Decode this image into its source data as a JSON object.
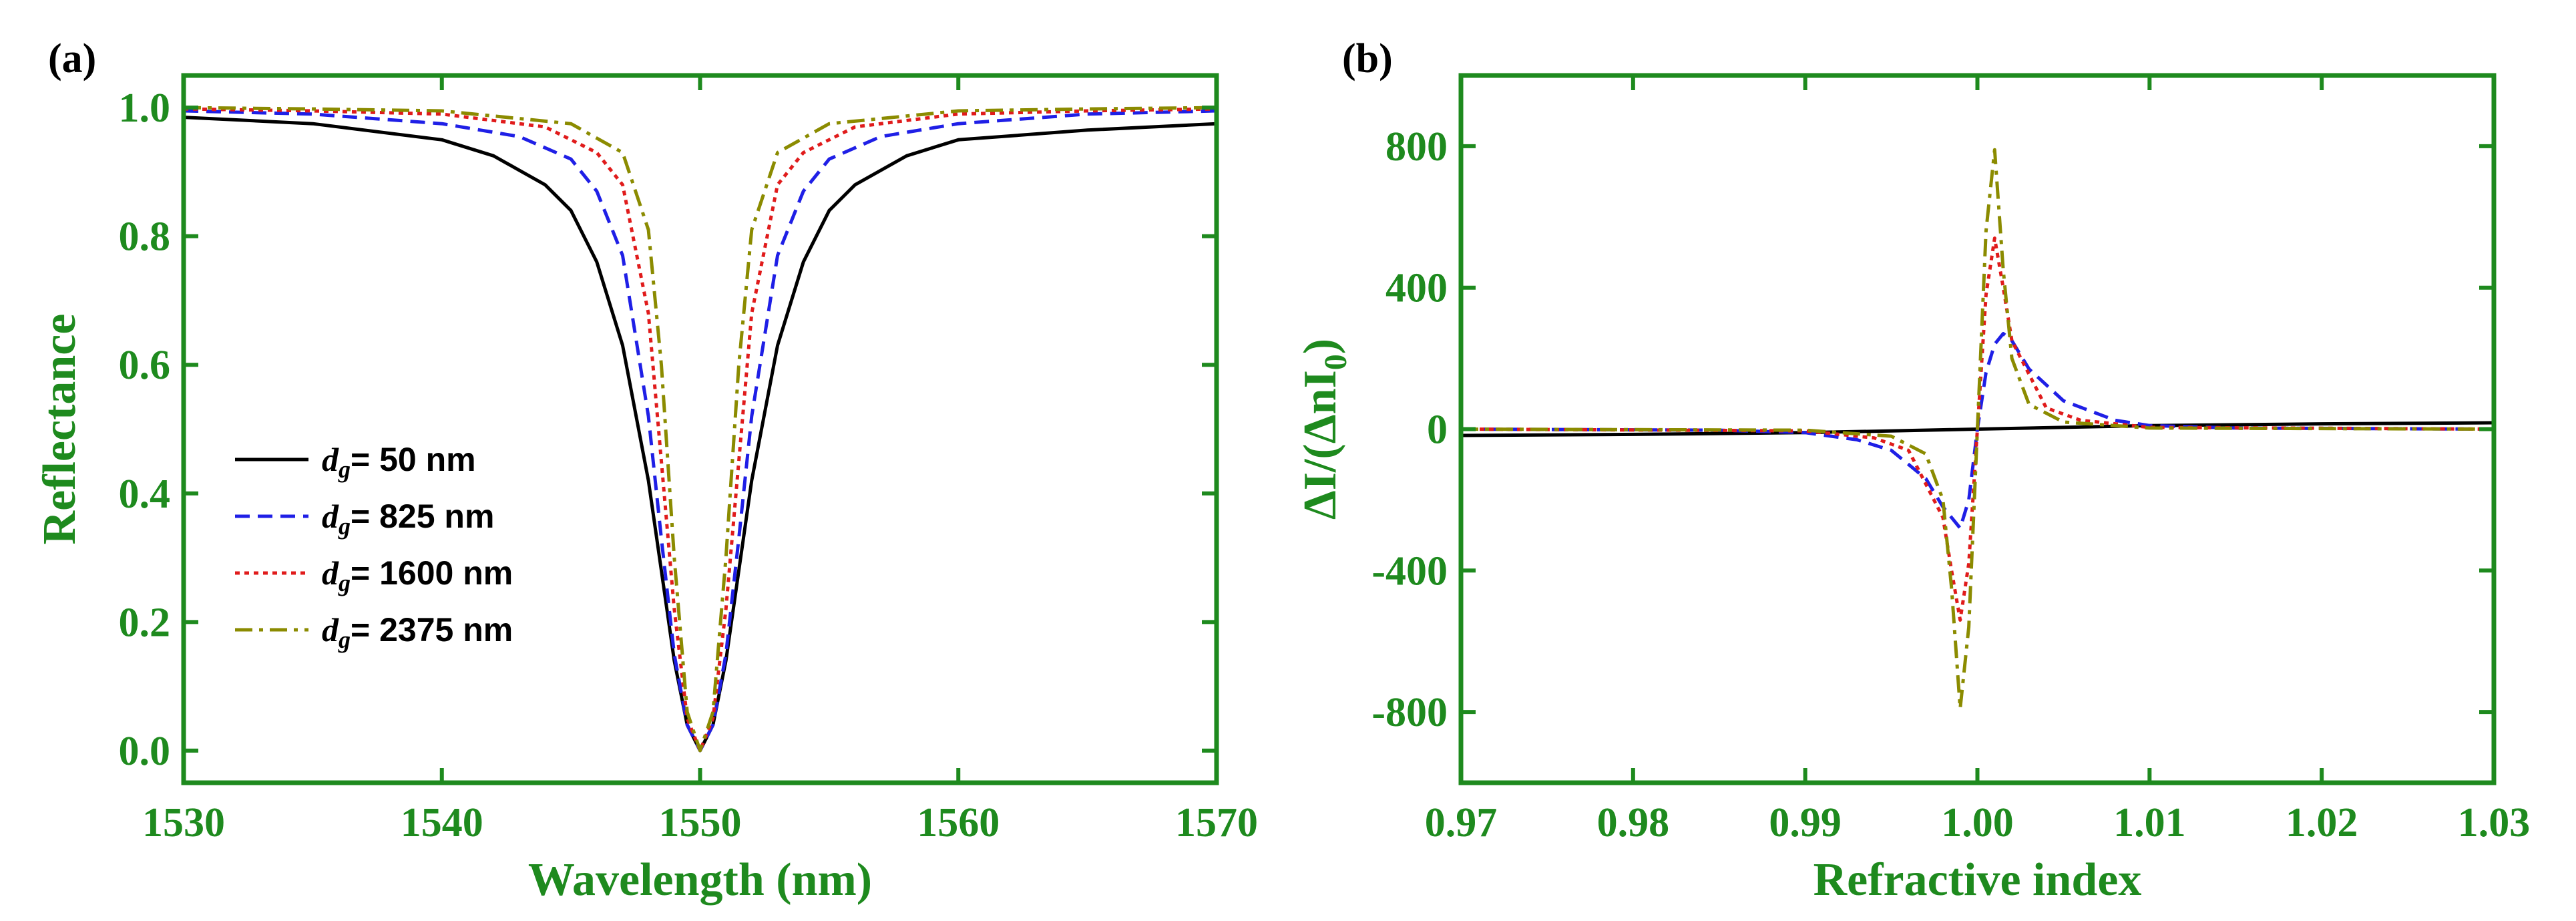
{
  "colors": {
    "axis": "#1e8a1e",
    "series_50": "#000000",
    "series_825": "#1f1fe6",
    "series_1600": "#e01b1b",
    "series_2375": "#8b8b00"
  },
  "chart_data": [
    {
      "panel": "(a)",
      "type": "line",
      "title": "",
      "xlabel": "Wavelength (nm)",
      "ylabel": "Reflectance",
      "xlim": [
        1530,
        1570
      ],
      "ylim": [
        -0.05,
        1.05
      ],
      "xticks": [
        "1530",
        "1540",
        "1550",
        "1560",
        "1570"
      ],
      "yticks": [
        "0.0",
        "0.2",
        "0.4",
        "0.6",
        "0.8",
        "1.0"
      ],
      "legend_position": "center-left",
      "legend": [
        {
          "prefix": "d",
          "sub": "g",
          "text": "= 50 nm",
          "style": "solid"
        },
        {
          "prefix": "d",
          "sub": "g",
          "text": "= 825 nm",
          "style": "dashed"
        },
        {
          "prefix": "d",
          "sub": "g",
          "text": "= 1600 nm",
          "style": "dotted"
        },
        {
          "prefix": "d",
          "sub": "g",
          "text": "= 2375 nm",
          "style": "dashdot"
        }
      ],
      "series": [
        {
          "name": "dg = 50 nm",
          "color": "#000000",
          "style": "solid",
          "x": [
            1530,
            1535,
            1540,
            1542,
            1544,
            1545,
            1546,
            1547,
            1548,
            1548.5,
            1549,
            1549.5,
            1550,
            1550.5,
            1551,
            1551.5,
            1552,
            1553,
            1554,
            1555,
            1556,
            1558,
            1560,
            1565,
            1570
          ],
          "y": [
            0.985,
            0.975,
            0.95,
            0.925,
            0.88,
            0.84,
            0.76,
            0.63,
            0.42,
            0.28,
            0.14,
            0.04,
            0.0,
            0.04,
            0.14,
            0.28,
            0.42,
            0.63,
            0.76,
            0.84,
            0.88,
            0.925,
            0.95,
            0.965,
            0.975
          ]
        },
        {
          "name": "dg = 825 nm",
          "color": "#1f1fe6",
          "style": "dashed",
          "x": [
            1530,
            1535,
            1540,
            1543,
            1545,
            1546,
            1547,
            1548,
            1548.5,
            1549,
            1549.5,
            1550,
            1550.5,
            1551,
            1551.5,
            1552,
            1553,
            1554,
            1555,
            1557,
            1560,
            1565,
            1570
          ],
          "y": [
            0.995,
            0.99,
            0.975,
            0.955,
            0.92,
            0.87,
            0.77,
            0.52,
            0.33,
            0.15,
            0.04,
            0.0,
            0.04,
            0.15,
            0.33,
            0.52,
            0.77,
            0.87,
            0.92,
            0.955,
            0.975,
            0.99,
            0.995
          ]
        },
        {
          "name": "dg = 1600 nm",
          "color": "#e01b1b",
          "style": "dotted",
          "x": [
            1530,
            1535,
            1540,
            1544,
            1546,
            1547,
            1548,
            1548.5,
            1549,
            1549.5,
            1550,
            1550.5,
            1551,
            1551.5,
            1552,
            1553,
            1554,
            1556,
            1560,
            1565,
            1570
          ],
          "y": [
            0.998,
            0.995,
            0.99,
            0.97,
            0.93,
            0.88,
            0.68,
            0.45,
            0.22,
            0.05,
            0.0,
            0.05,
            0.22,
            0.45,
            0.68,
            0.88,
            0.93,
            0.97,
            0.99,
            0.995,
            0.998
          ]
        },
        {
          "name": "dg = 2375 nm",
          "color": "#8b8b00",
          "style": "dashdot",
          "x": [
            1530,
            1535,
            1540,
            1545,
            1547,
            1548,
            1548.5,
            1549,
            1549.5,
            1550,
            1550.5,
            1551,
            1551.5,
            1552,
            1553,
            1555,
            1560,
            1565,
            1570
          ],
          "y": [
            1.0,
            0.998,
            0.995,
            0.975,
            0.93,
            0.81,
            0.6,
            0.3,
            0.06,
            0.0,
            0.06,
            0.3,
            0.6,
            0.81,
            0.93,
            0.975,
            0.995,
            0.998,
            1.0
          ]
        }
      ]
    },
    {
      "panel": "(b)",
      "type": "line",
      "title": "",
      "xlabel": "Refractive index",
      "ylabel": "ΔI/(ΔnI0)",
      "ylabel_parts": [
        "ΔI/(ΔnI",
        "0",
        ")"
      ],
      "xlim": [
        0.97,
        1.03
      ],
      "ylim": [
        -1000,
        1000
      ],
      "xticks": [
        "0.97",
        "0.98",
        "0.99",
        "1.00",
        "1.01",
        "1.02",
        "1.03"
      ],
      "yticks": [
        "-800",
        "-400",
        "0",
        "400",
        "800"
      ],
      "series": [
        {
          "name": "dg = 50 nm",
          "color": "#000000",
          "style": "solid",
          "x": [
            0.97,
            0.98,
            0.99,
            1.0,
            1.01,
            1.02,
            1.03
          ],
          "y": [
            -18,
            -15,
            -10,
            0,
            10,
            15,
            18
          ]
        },
        {
          "name": "dg = 825 nm",
          "color": "#1f1fe6",
          "style": "dashed",
          "x": [
            0.97,
            0.985,
            0.99,
            0.993,
            0.995,
            0.997,
            0.998,
            0.999,
            0.9995,
            1.0,
            1.0005,
            1.001,
            1.0015,
            1.002,
            1.003,
            1.005,
            1.008,
            1.01,
            1.015,
            1.03
          ],
          "y": [
            0,
            -3,
            -10,
            -30,
            -60,
            -140,
            -220,
            -280,
            -200,
            0,
            160,
            240,
            270,
            250,
            170,
            80,
            25,
            10,
            3,
            0
          ]
        },
        {
          "name": "dg = 1600 nm",
          "color": "#e01b1b",
          "style": "dotted",
          "x": [
            0.97,
            0.99,
            0.994,
            0.996,
            0.998,
            0.9985,
            0.999,
            0.9995,
            1.0,
            1.0005,
            1.001,
            1.0015,
            1.002,
            1.004,
            1.006,
            1.01,
            1.03
          ],
          "y": [
            0,
            -5,
            -25,
            -60,
            -250,
            -400,
            -540,
            -380,
            0,
            380,
            540,
            400,
            250,
            60,
            25,
            5,
            0
          ]
        },
        {
          "name": "dg = 2375 nm",
          "color": "#8b8b00",
          "style": "dashdot",
          "x": [
            0.97,
            0.99,
            0.995,
            0.997,
            0.998,
            0.9985,
            0.999,
            0.9995,
            1.0,
            1.0005,
            1.001,
            1.0015,
            1.002,
            1.003,
            1.005,
            1.01,
            1.03
          ],
          "y": [
            0,
            -3,
            -20,
            -70,
            -200,
            -450,
            -790,
            -560,
            0,
            560,
            790,
            450,
            200,
            70,
            20,
            3,
            0
          ]
        }
      ]
    }
  ]
}
